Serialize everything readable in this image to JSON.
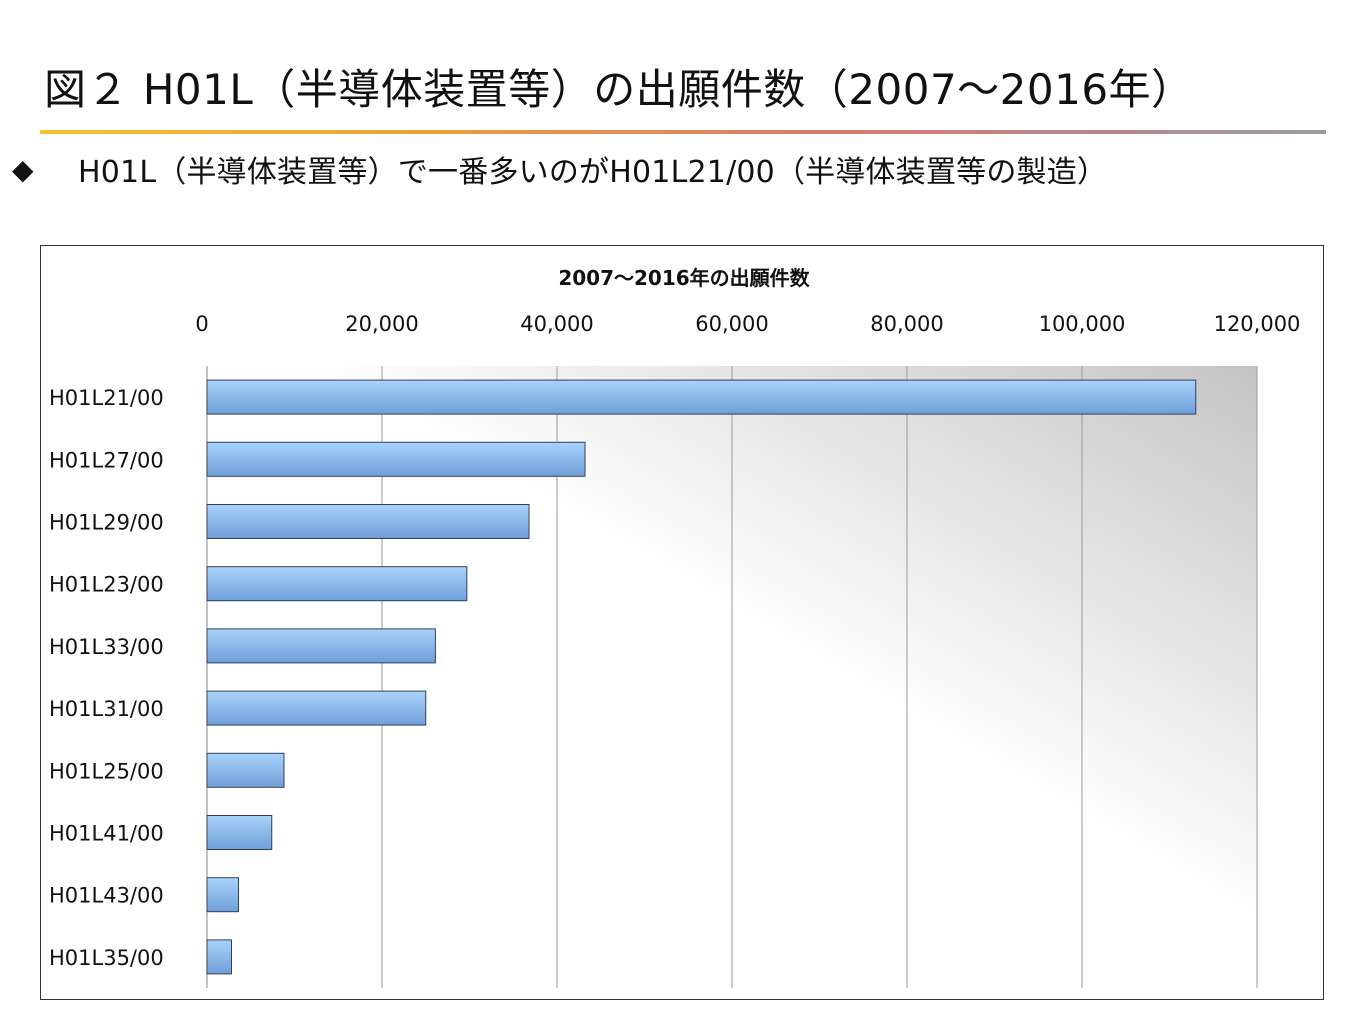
{
  "slide": {
    "title": "図２ H01L（半導体装置等）の出願件数（2007～2016年）",
    "bullet_icon": "diamond-bullet-icon",
    "bullet_text": "H01L（半導体装置等）で一番多いのがH01L21/00（半導体装置等の製造）"
  },
  "colors": {
    "bar_light": "#a9d3fb",
    "bar_dark": "#6f9fd8",
    "bar_border": "#34405a",
    "rule_gradient": [
      "#f3c230",
      "#e9a13a",
      "#e07a6e",
      "#9c9ca4"
    ]
  },
  "chart_data": {
    "type": "bar",
    "orientation": "horizontal",
    "title": "2007～2016年の出願件数",
    "xlabel": "",
    "ylabel": "",
    "xlim": [
      0,
      120000
    ],
    "x_ticks": [
      0,
      20000,
      40000,
      60000,
      80000,
      100000,
      120000
    ],
    "x_tick_labels": [
      "0",
      "20,000",
      "40,000",
      "60,000",
      "80,000",
      "100,000",
      "120,000"
    ],
    "x_axis_position": "top",
    "grid": true,
    "legend": "none",
    "categories": [
      "H01L21/00",
      "H01L27/00",
      "H01L29/00",
      "H01L23/00",
      "H01L33/00",
      "H01L31/00",
      "H01L25/00",
      "H01L41/00",
      "H01L43/00",
      "H01L35/00"
    ],
    "values": [
      113000,
      43200,
      36800,
      29700,
      26100,
      25000,
      8800,
      7400,
      3600,
      2800
    ]
  }
}
